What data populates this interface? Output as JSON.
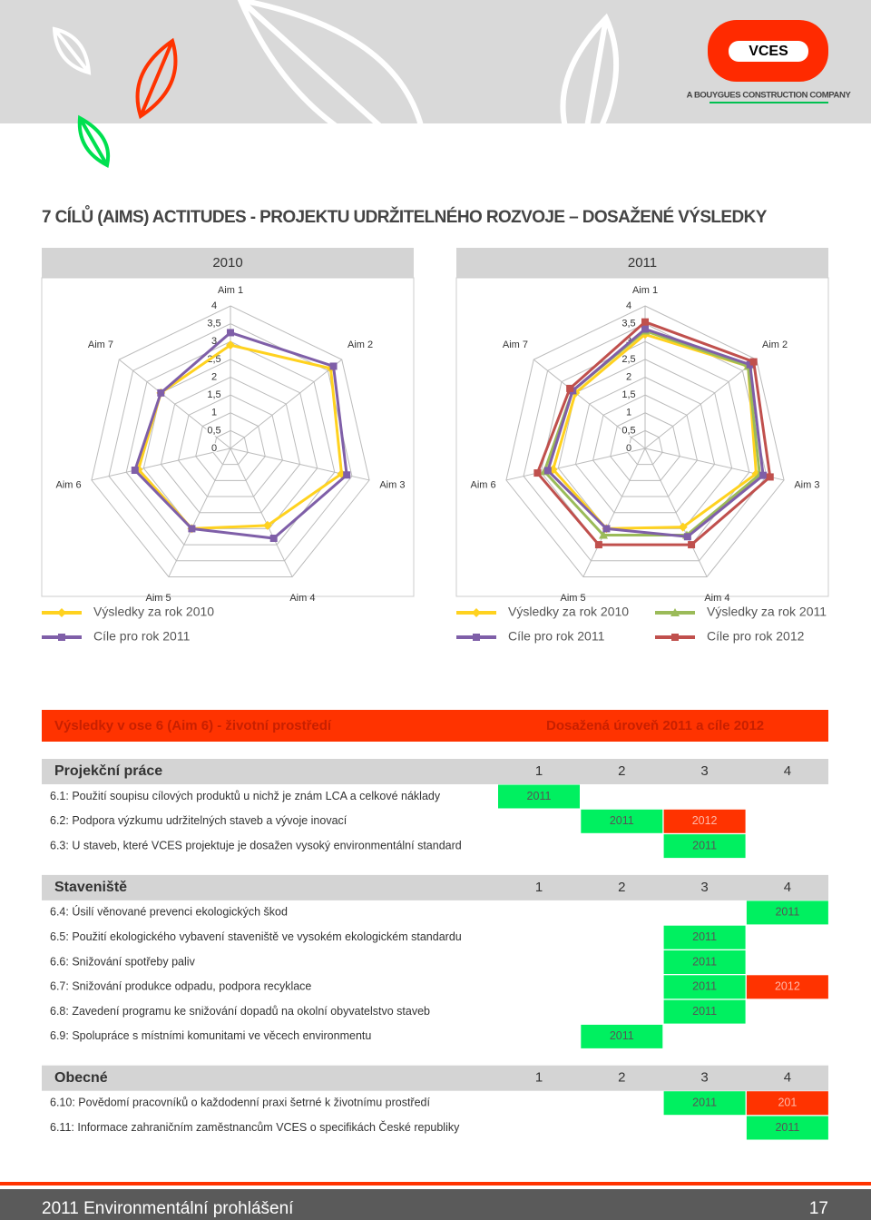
{
  "header": {
    "logo": "VCES",
    "tagline": "A BOUYGUES CONSTRUCTION COMPANY"
  },
  "title": "7 CÍLŮ (AIMS) ACTITUDES - PROJEKTU UDRŽITELNÉHO ROZVOJE – DOSAŽENÉ VÝSLEDKY",
  "chart_data": [
    {
      "type": "radar",
      "title": "2010",
      "categories": [
        "Aim 1",
        "Aim 2",
        "Aim 3",
        "Aim 4",
        "Aim 5",
        "Aim 6",
        "Aim 7"
      ],
      "rlim": [
        0,
        4
      ],
      "rticks": [
        0,
        {
          "value": 0.5,
          "label": "0,5"
        },
        1,
        {
          "value": 1.5,
          "label": "1,5"
        },
        2,
        {
          "value": 2.5,
          "label": "2,5"
        },
        3,
        {
          "value": 3.5,
          "label": "3,5"
        },
        4
      ],
      "grid": true,
      "series": [
        {
          "name": "Výsledky za rok 2010",
          "color": "#ffd21f",
          "marker": "diamond",
          "values": [
            2.9,
            3.6,
            3.2,
            2.4,
            2.5,
            2.65,
            2.5
          ]
        },
        {
          "name": "Cíle pro rok 2011",
          "color": "#7f5fa8",
          "marker": "square",
          "values": [
            3.25,
            3.7,
            3.35,
            2.8,
            2.5,
            2.75,
            2.5
          ]
        }
      ]
    },
    {
      "type": "radar",
      "title": "2011",
      "categories": [
        "Aim 1",
        "Aim 2",
        "Aim 3",
        "Aim 4",
        "Aim 5",
        "Aim 6",
        "Aim 7"
      ],
      "rlim": [
        0,
        4
      ],
      "rticks": [
        0,
        {
          "value": 0.5,
          "label": "0,5"
        },
        1,
        {
          "value": 1.5,
          "label": "1,5"
        },
        2,
        {
          "value": 2.5,
          "label": "2,5"
        },
        3,
        {
          "value": 3.5,
          "label": "3,5"
        },
        4
      ],
      "grid": true,
      "series": [
        {
          "name": "Výsledky za rok 2010",
          "color": "#ffd21f",
          "marker": "diamond",
          "values": [
            3.2,
            3.7,
            3.2,
            2.45,
            2.5,
            2.65,
            2.5
          ]
        },
        {
          "name": "Výsledky za rok 2011",
          "color": "#9bbb59",
          "marker": "triangle",
          "values": [
            3.3,
            3.7,
            3.3,
            2.7,
            2.7,
            2.9,
            2.6
          ]
        },
        {
          "name": "Cíle pro rok 2011",
          "color": "#7f5fa8",
          "marker": "square",
          "values": [
            3.35,
            3.77,
            3.4,
            2.75,
            2.5,
            2.8,
            2.6
          ]
        },
        {
          "name": "Cíle pro rok 2012",
          "color": "#c0504d",
          "marker": "square",
          "values": [
            3.55,
            3.9,
            3.6,
            3.0,
            3.0,
            3.1,
            2.7
          ]
        }
      ]
    }
  ],
  "table": {
    "title": "Výsledky v ose 6 (Aim 6) - životní prostředí",
    "subtitle": "Dosažená úroveň 2011 a cíle 2012",
    "levels": [
      1,
      2,
      3,
      4
    ],
    "sections": [
      {
        "name": "Projekční práce",
        "rows": [
          {
            "text": "6.1: Použití soupisu cílových produktů u nichž je znám LCA a celkové náklady",
            "cells": [
              {
                "level": 1,
                "label": "2011",
                "color": "#00f060"
              }
            ]
          },
          {
            "text": "6.2: Podpora výzkumu udržitelných staveb a vývoje inovací",
            "cells": [
              {
                "level": 2,
                "label": "2011",
                "color": "#00f060"
              },
              {
                "level": 3,
                "label": "2012",
                "color": "#ff3300"
              }
            ]
          },
          {
            "text": "6.3: U staveb, které VCES projektuje je dosažen vysoký environmentální standard",
            "cells": [
              {
                "level": 3,
                "label": "2011",
                "color": "#00f060"
              }
            ]
          }
        ]
      },
      {
        "name": "Staveniště",
        "rows": [
          {
            "text": "6.4: Úsilí věnované prevenci ekologických škod",
            "cells": [
              {
                "level": 4,
                "label": "2011",
                "color": "#00f060"
              }
            ]
          },
          {
            "text": "6.5: Použití ekologického vybavení staveniště ve vysokém ekologickém standardu",
            "cells": [
              {
                "level": 3,
                "label": "2011",
                "color": "#00f060"
              }
            ]
          },
          {
            "text": "6.6: Snižování spotřeby paliv",
            "cells": [
              {
                "level": 3,
                "label": "2011",
                "color": "#00f060"
              }
            ]
          },
          {
            "text": "6.7: Snižování produkce odpadu, podpora recyklace",
            "cells": [
              {
                "level": 3,
                "label": "2011",
                "color": "#00f060"
              },
              {
                "level": 4,
                "label": "2012",
                "color": "#ff3300"
              }
            ]
          },
          {
            "text": "6.8: Zavedení programu ke snižování dopadů na okolní obyvatelstvo staveb",
            "cells": [
              {
                "level": 3,
                "label": "2011",
                "color": "#00f060"
              }
            ]
          },
          {
            "text": "6.9: Spolupráce s místními komunitami ve věcech environmentu",
            "cells": [
              {
                "level": 2,
                "label": "2011",
                "color": "#00f060"
              }
            ]
          }
        ]
      },
      {
        "name": "Obecné",
        "rows": [
          {
            "text": "6.10: Povědomí pracovníků o každodenní praxi šetrné k životnímu prostředí",
            "cells": [
              {
                "level": 3,
                "label": "2011",
                "color": "#00f060"
              },
              {
                "level": 4,
                "label": "201",
                "color": "#ff3300"
              }
            ]
          },
          {
            "text": "6.11: Informace zahraničním zaměstnancům VCES o specifikách České republiky",
            "cells": [
              {
                "level": 4,
                "label": "2011",
                "color": "#00f060"
              }
            ]
          }
        ]
      }
    ]
  },
  "footer": {
    "text": "2011 Environmentální prohlášení",
    "page": "17"
  }
}
